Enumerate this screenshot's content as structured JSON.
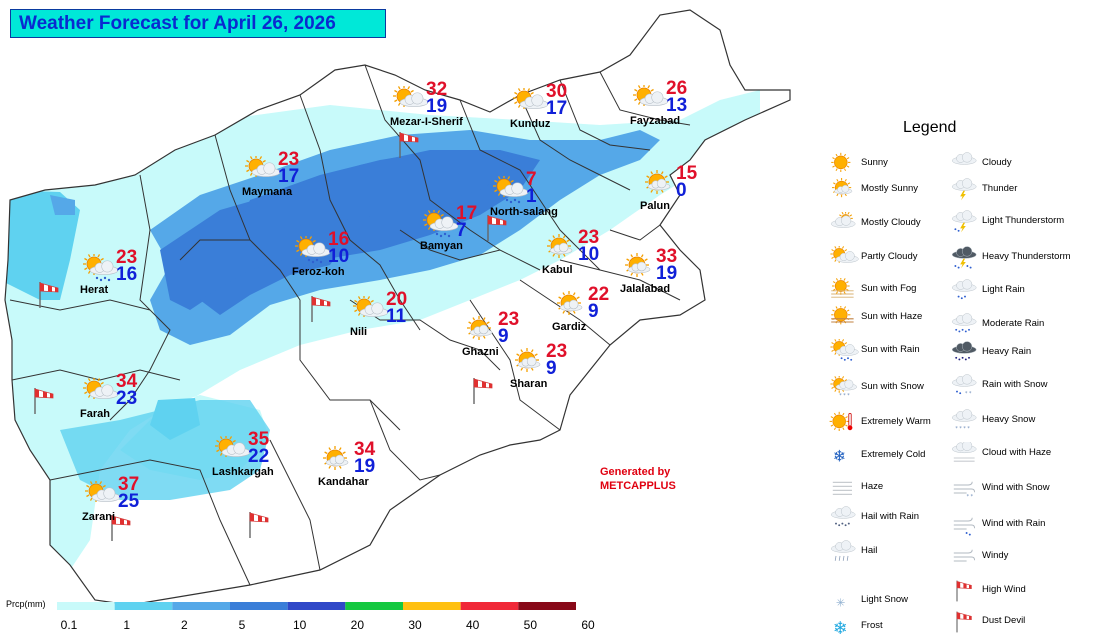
{
  "title": "Weather Forecast for April 26, 2026",
  "cities": [
    {
      "name": "Mezar-I-Sherif",
      "max": "32",
      "min": "19",
      "icon": "partly-cloudy-icon"
    },
    {
      "name": "Kunduz",
      "max": "30",
      "min": "17",
      "icon": "partly-cloudy-icon"
    },
    {
      "name": "Fayzabad",
      "max": "26",
      "min": "13",
      "icon": "partly-cloudy-icon"
    },
    {
      "name": "Maymana",
      "max": "23",
      "min": "17",
      "icon": "partly-cloudy-icon"
    },
    {
      "name": "North-salang",
      "max": "7",
      "min": "1",
      "icon": "sun-with-rain-icon"
    },
    {
      "name": "Palun",
      "max": "15",
      "min": "0",
      "icon": "mostly-sunny-icon"
    },
    {
      "name": "Bamyan",
      "max": "17",
      "min": "7",
      "icon": "sun-with-rain-icon"
    },
    {
      "name": "Feroz-koh",
      "max": "16",
      "min": "10",
      "icon": "sun-with-rain-icon"
    },
    {
      "name": "Kabul",
      "max": "23",
      "min": "10",
      "icon": "mostly-sunny-icon"
    },
    {
      "name": "Jalalabad",
      "max": "33",
      "min": "19",
      "icon": "mostly-sunny-icon"
    },
    {
      "name": "Herat",
      "max": "23",
      "min": "16",
      "icon": "sun-with-rain-icon"
    },
    {
      "name": "Nili",
      "max": "20",
      "min": "11",
      "icon": "partly-cloudy-icon"
    },
    {
      "name": "Gardiz",
      "max": "22",
      "min": "9",
      "icon": "mostly-sunny-icon"
    },
    {
      "name": "Ghazni",
      "max": "23",
      "min": "9",
      "icon": "mostly-sunny-icon"
    },
    {
      "name": "Sharan",
      "max": "23",
      "min": "9",
      "icon": "mostly-sunny-icon"
    },
    {
      "name": "Farah",
      "max": "34",
      "min": "23",
      "icon": "partly-cloudy-icon"
    },
    {
      "name": "Lashkargah",
      "max": "35",
      "min": "22",
      "icon": "partly-cloudy-icon"
    },
    {
      "name": "Kandahar",
      "max": "34",
      "min": "19",
      "icon": "mostly-sunny-icon"
    },
    {
      "name": "Zarani",
      "max": "37",
      "min": "25",
      "icon": "partly-cloudy-icon"
    }
  ],
  "legend": {
    "title": "Legend",
    "items": [
      {
        "label": "Sunny",
        "icon": "sunny-icon"
      },
      {
        "label": "Mostly Sunny",
        "icon": "mostly-sunny-icon"
      },
      {
        "label": "Mostly Cloudy",
        "icon": "mostly-cloudy-icon"
      },
      {
        "label": "Partly Cloudy",
        "icon": "partly-cloudy-icon"
      },
      {
        "label": "Sun with Fog",
        "icon": "sun-with-fog-icon"
      },
      {
        "label": "Sun with Haze",
        "icon": "sun-with-haze-icon"
      },
      {
        "label": "Sun with Rain",
        "icon": "sun-with-rain-icon"
      },
      {
        "label": "Sun with Snow",
        "icon": "sun-with-snow-icon"
      },
      {
        "label": "Extremely Warm",
        "icon": "extremely-warm-icon"
      },
      {
        "label": "Extremely Cold",
        "icon": "extremely-cold-icon"
      },
      {
        "label": "Haze",
        "icon": "haze-icon"
      },
      {
        "label": "Hail with Rain",
        "icon": "hail-with-rain-icon"
      },
      {
        "label": "Hail",
        "icon": "hail-icon"
      },
      {
        "label": "Light Snow",
        "icon": "light-snow-icon"
      },
      {
        "label": "Frost",
        "icon": "frost-icon"
      },
      {
        "label": "Cloudy",
        "icon": "cloudy-icon"
      },
      {
        "label": "Thunder",
        "icon": "thunder-icon"
      },
      {
        "label": "Light Thunderstorm",
        "icon": "light-thunderstorm-icon"
      },
      {
        "label": "Heavy Thunderstorm",
        "icon": "heavy-thunderstorm-icon"
      },
      {
        "label": "Light Rain",
        "icon": "light-rain-icon"
      },
      {
        "label": "Moderate Rain",
        "icon": "moderate-rain-icon"
      },
      {
        "label": "Heavy Rain",
        "icon": "heavy-rain-icon"
      },
      {
        "label": "Rain with Snow",
        "icon": "rain-with-snow-icon"
      },
      {
        "label": "Heavy Snow",
        "icon": "heavy-snow-icon"
      },
      {
        "label": "Cloud with Haze",
        "icon": "cloud-with-haze-icon"
      },
      {
        "label": "Wind with Snow",
        "icon": "wind-with-snow-icon"
      },
      {
        "label": "Wind with Rain",
        "icon": "wind-with-rain-icon"
      },
      {
        "label": "Windy",
        "icon": "windy-icon"
      },
      {
        "label": "High Wind",
        "icon": "high-wind-icon"
      },
      {
        "label": "Dust Devil",
        "icon": "dust-devil-icon"
      }
    ]
  },
  "generated_by": {
    "line1": "Generated by",
    "line2": "METCAPPLUS"
  },
  "precip_scale": {
    "label": "Prcp(mm)",
    "ticks": [
      "0.1",
      "1",
      "2",
      "5",
      "10",
      "20",
      "30",
      "40",
      "50",
      "60"
    ],
    "colors": [
      "#c8fafa",
      "#5fd2f0",
      "#55a8e8",
      "#3a7ed8",
      "#3048c8",
      "#14c840",
      "#ffc010",
      "#f02838",
      "#880818"
    ]
  },
  "colors": {
    "max_temp": "#e0102a",
    "min_temp": "#1020d8",
    "title_bg": "#00e8d8",
    "title_text": "#0a2ad0"
  }
}
